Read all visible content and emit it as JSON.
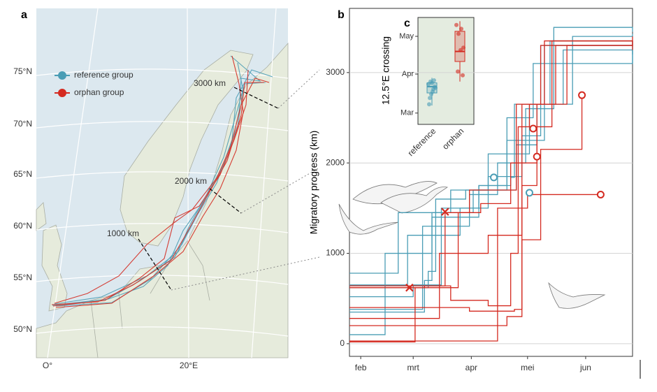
{
  "map": {
    "panel": "a",
    "legend": [
      {
        "name": "reference group",
        "color": "#4a9db5"
      },
      {
        "name": "orphan group",
        "color": "#d42a20"
      }
    ],
    "lat_labels": [
      "75°N",
      "70°N",
      "65°N",
      "60°N",
      "55°N",
      "50°N"
    ],
    "lon_labels": [
      "O°",
      "20°E"
    ],
    "distance_labels": [
      "3000 km",
      "2000 km",
      "1000 km"
    ]
  },
  "chart_data": [
    {
      "type": "step",
      "panel": "b",
      "ylabel": "Migratory progress (km)",
      "xlim": [
        26,
        177
      ],
      "xticks": [
        {
          "value": 32,
          "label": "feb"
        },
        {
          "value": 60,
          "label": "mrt"
        },
        {
          "value": 91,
          "label": "apr"
        },
        {
          "value": 121,
          "label": "mei"
        },
        {
          "value": 152,
          "label": "jun"
        }
      ],
      "ylim": [
        -140,
        3710
      ],
      "yticks": [
        0,
        1000,
        2000,
        3000
      ],
      "grid": true,
      "groups": [
        {
          "color": "#4a9db5",
          "tracks": [
            {
              "x": [
                26,
                52,
                80,
                100,
                122,
                145,
                177
              ],
              "values": [
                780,
                1450,
                1700,
                2100,
                2650,
                3400,
                3430
              ]
            },
            {
              "x": [
                26,
                60,
                75,
                95,
                110,
                130,
                177
              ],
              "values": [
                520,
                650,
                1500,
                1750,
                2250,
                3300,
                3300
              ]
            },
            {
              "x": [
                26,
                65,
                90,
                105,
                120,
                135,
                177
              ],
              "values": [
                380,
                1300,
                1650,
                2000,
                2600,
                3500,
                3450
              ]
            },
            {
              "x": [
                26,
                45,
                70,
                92,
                115,
                126,
                140,
                177
              ],
              "values": [
                100,
                1000,
                1450,
                1700,
                2200,
                2650,
                3250,
                3200
              ]
            },
            {
              "x": [
                26,
                57,
                85,
                100,
                118,
                128,
                177
              ],
              "values": [
                650,
                1200,
                1500,
                1850,
                2300,
                3300,
                3100
              ]
            },
            {
              "x": [
                26,
                68,
                72,
                88,
                110,
                124,
                177
              ],
              "values": [
                620,
                800,
                1600,
                1700,
                2500,
                3100,
                3350
              ]
            },
            {
              "x": [
                26,
                66,
                70,
                95,
                112,
                114,
                133,
                177
              ],
              "values": [
                350,
                700,
                1400,
                1750,
                1840,
                2650,
                3350,
                3300
              ]
            }
          ]
        },
        {
          "color": "#d42a20",
          "tracks": [
            {
              "x": [
                26,
                61,
                66,
                77,
                90,
                115,
                128,
                177
              ],
              "values": [
                20,
                620,
                640,
                1450,
                1700,
                2650,
                3300,
                3400
              ]
            },
            {
              "x": [
                26,
                74,
                100,
                118,
                130,
                177
              ],
              "values": [
                280,
                1000,
                1200,
                2650,
                3350,
                3300
              ]
            },
            {
              "x": [
                26,
                84,
                96,
                112,
                126,
                134,
                177
              ],
              "values": [
                620,
                1450,
                1550,
                2000,
                2400,
                3350,
                3350
              ]
            },
            {
              "x": [
                26,
                80,
                100,
                112,
                116,
                122,
                142,
                177
              ],
              "values": [
                640,
                480,
                420,
                1000,
                2400,
                2650,
                3300,
                3300
              ]
            },
            {
              "x": [
                26,
                90,
                114,
                118,
                126,
                136,
                177
              ],
              "values": [
                400,
                360,
                380,
                1750,
                2650,
                3300,
                3250
              ]
            },
            {
              "x": [
                26,
                95,
                110,
                118,
                128,
                150
              ],
              "values": [
                200,
                200,
                300,
                1150,
                2150,
                2750
              ]
            },
            {
              "x": [
                26,
                55,
                105,
                121,
                160
              ],
              "values": [
                30,
                30,
                1500,
                1650,
                1650
              ]
            }
          ]
        }
      ],
      "markers": [
        {
          "group": 0,
          "shape": "circle",
          "x": 103,
          "y": 1840
        },
        {
          "group": 0,
          "shape": "circle",
          "x": 122,
          "y": 1670
        },
        {
          "group": 1,
          "shape": "circle",
          "x": 124,
          "y": 2380
        },
        {
          "group": 1,
          "shape": "circle",
          "x": 126,
          "y": 2070
        },
        {
          "group": 1,
          "shape": "circle",
          "x": 150,
          "y": 2750
        },
        {
          "group": 1,
          "shape": "circle",
          "x": 160,
          "y": 1650
        },
        {
          "group": 1,
          "shape": "cross",
          "x": 58,
          "y": 620
        },
        {
          "group": 1,
          "shape": "cross",
          "x": 77,
          "y": 1460
        }
      ]
    },
    {
      "type": "box",
      "panel": "c",
      "ylabel": "12.5°E crossing",
      "categories": [
        "reference",
        "orphan"
      ],
      "colors": [
        "#4a9db5",
        "#d42a20"
      ],
      "ylim": [
        51,
        136
      ],
      "yticks": [
        {
          "value": 60,
          "label": "Mar"
        },
        {
          "value": 91,
          "label": "Apr"
        },
        {
          "value": 121,
          "label": "May"
        }
      ],
      "whisker_low": [
        66,
        85
      ],
      "q1": [
        76,
        101
      ],
      "median": [
        81,
        109
      ],
      "q3": [
        84,
        125
      ],
      "whisker_high": [
        88,
        133
      ],
      "points": [
        [
          83,
          79,
          85,
          80,
          77,
          72,
          81,
          84,
          67,
          86,
          75
        ],
        [
          130,
          127,
          123,
          112,
          110,
          93,
          90
        ]
      ]
    }
  ]
}
